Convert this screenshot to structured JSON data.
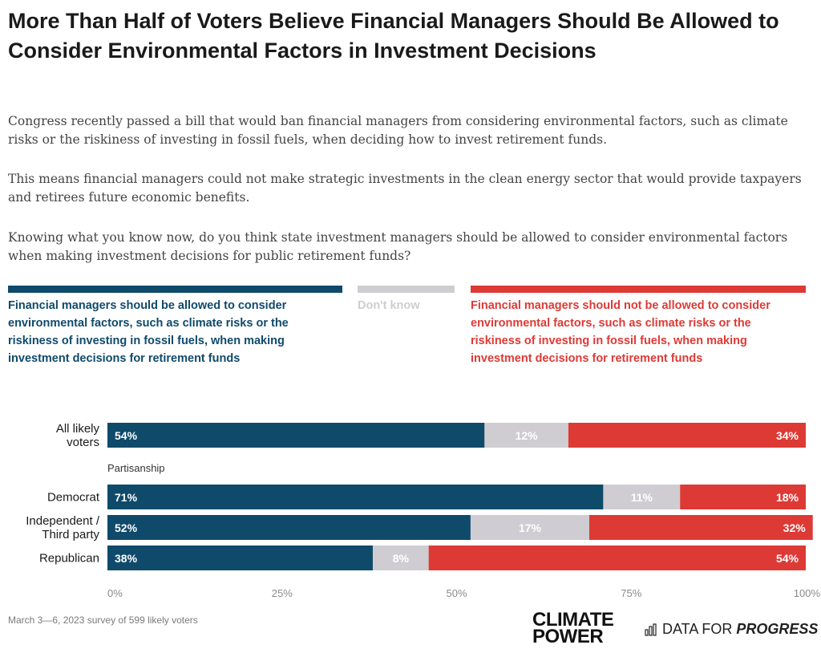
{
  "title": "More Than Half of Voters Believe Financial Managers Should Be Allowed to Consider Environmental Factors in Investment Decisions",
  "intro": {
    "p1": "Congress recently passed a bill that would ban financial managers from considering environmental factors, such as climate risks or the riskiness of investing in fossil fuels, when deciding how to invest retirement funds.",
    "p2": "This means financial managers could not make strategic investments in the clean energy sector that would provide taxpayers and retirees future economic benefits.",
    "p3": "Knowing what you know now, do you think state investment managers should be allowed to consider environmental factors when making investment decisions for public retirement funds?"
  },
  "legend": {
    "allowed": "Financial managers should be allowed to consider environmental factors, such as climate risks or the riskiness of investing in fossil fuels, when making investment decisions for retirement funds",
    "dont_know": "Don't know",
    "not_allowed": "Financial managers should not be allowed to consider environmental factors, such as climate risks or the riskiness of investing in fossil fuels, when making investment decisions for retirement funds"
  },
  "colors": {
    "allowed": "#0f4a6b",
    "dont_know": "#cfcdd1",
    "not_allowed": "#dd3a35"
  },
  "chart_data": {
    "type": "bar",
    "orientation": "horizontal",
    "stacked": true,
    "categories": [
      "All likely voters",
      "Democrat",
      "Independent / Third party",
      "Republican"
    ],
    "group_label": "Partisanship",
    "series": [
      {
        "name": "Financial managers should be allowed to consider environmental factors, such as climate risks or the riskiness of investing in fossil fuels, when making investment decisions for retirement funds",
        "values": [
          54,
          71,
          52,
          38
        ]
      },
      {
        "name": "Don't know",
        "values": [
          12,
          11,
          17,
          8
        ]
      },
      {
        "name": "Financial managers should not be allowed to consider environmental factors, such as climate risks or the riskiness of investing in fossil fuels, when making investment decisions for retirement funds",
        "values": [
          34,
          18,
          32,
          54
        ]
      }
    ],
    "xlim": [
      0,
      100
    ],
    "xticks": [
      "0%",
      "25%",
      "50%",
      "75%",
      "100%"
    ],
    "legend_position": "top",
    "grid": false
  },
  "footer": {
    "note": "March 3—6, 2023 survey of 599 likely voters",
    "logo_cp_line1": "CLIMATE",
    "logo_cp_line2": "POWER",
    "logo_dfp_plain": "DATA FOR ",
    "logo_dfp_emph": "PROGRESS"
  }
}
